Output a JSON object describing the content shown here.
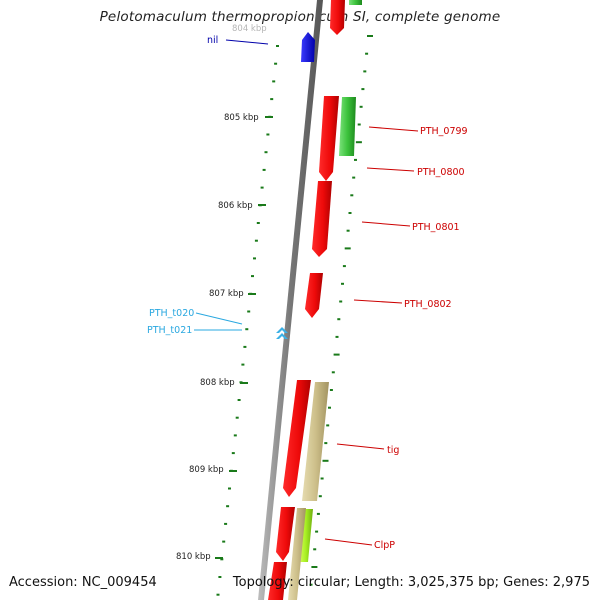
{
  "title": "Pelotomaculum thermopropionicum SI, complete genome",
  "footer": {
    "accession": "Accession: NC_009454",
    "topology": "Topology: circular; Length: 3,025,375 bp; Genes: 2,975"
  },
  "colors": {
    "backbone": "#8a8a8a",
    "tick": "#1a7a1a",
    "cds": "#ee1111",
    "trna": "#3ab0e6",
    "label_red": "#cc0000",
    "label_blue": "#0000aa",
    "label_cyan": "#2aa8e0"
  },
  "ruler": {
    "top_label": "804 kbp",
    "labels": [
      "805 kbp",
      "806 kbp",
      "807 kbp",
      "808 kbp",
      "809 kbp",
      "810 kbp"
    ]
  },
  "gene_labels": [
    {
      "text": "nil",
      "type": "blue"
    },
    {
      "text": "PTH_0799",
      "type": "red"
    },
    {
      "text": "PTH_0800",
      "type": "red"
    },
    {
      "text": "PTH_0801",
      "type": "red"
    },
    {
      "text": "PTH_0802",
      "type": "red"
    },
    {
      "text": "PTH_t020",
      "type": "cyan"
    },
    {
      "text": "PTH_t021",
      "type": "cyan"
    },
    {
      "text": "tig",
      "type": "red"
    },
    {
      "text": "ClpP",
      "type": "red"
    }
  ]
}
